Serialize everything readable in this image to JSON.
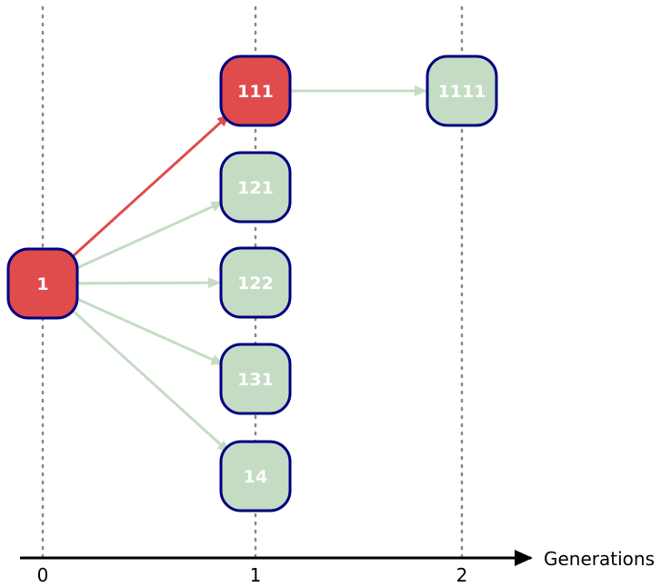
{
  "colors": {
    "highlight_fill": "#e04b4b",
    "default_fill": "#c4dcc4",
    "node_border": "#000080",
    "highlight_edge": "#e04b4b",
    "default_edge": "#c4dcc4",
    "gridline": "#888888",
    "axis": "#000000"
  },
  "axis": {
    "title": "Generations",
    "ticks": [
      "0",
      "1",
      "2"
    ]
  },
  "nodes": [
    {
      "id": "n1",
      "label": "1",
      "generation": 0,
      "highlighted": true
    },
    {
      "id": "n111",
      "label": "111",
      "generation": 1,
      "highlighted": true
    },
    {
      "id": "n121",
      "label": "121",
      "generation": 1,
      "highlighted": false
    },
    {
      "id": "n122",
      "label": "122",
      "generation": 1,
      "highlighted": false
    },
    {
      "id": "n131",
      "label": "131",
      "generation": 1,
      "highlighted": false
    },
    {
      "id": "n14",
      "label": "14",
      "generation": 1,
      "highlighted": false
    },
    {
      "id": "n1111",
      "label": "1111",
      "generation": 2,
      "highlighted": false
    }
  ],
  "edges": [
    {
      "from": "1",
      "to": "111",
      "highlighted": true
    },
    {
      "from": "1",
      "to": "121",
      "highlighted": false
    },
    {
      "from": "1",
      "to": "122",
      "highlighted": false
    },
    {
      "from": "1",
      "to": "131",
      "highlighted": false
    },
    {
      "from": "1",
      "to": "14",
      "highlighted": false
    },
    {
      "from": "111",
      "to": "1111",
      "highlighted": false
    }
  ]
}
